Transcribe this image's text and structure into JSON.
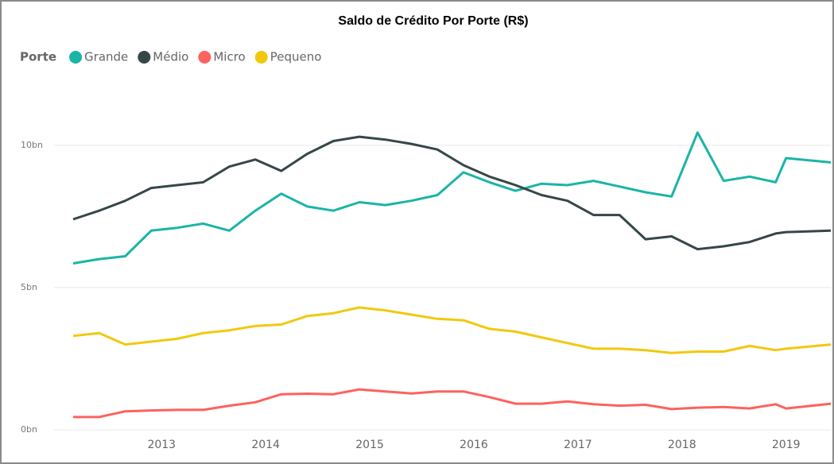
{
  "chart_data": {
    "type": "line",
    "title": "Saldo de Crédito Por Porte (R$)",
    "legend_title": "Porte",
    "x": [
      2012.15,
      2012.4,
      2012.65,
      2012.9,
      2013.15,
      2013.4,
      2013.65,
      2013.9,
      2014.15,
      2014.4,
      2014.65,
      2014.9,
      2015.15,
      2015.4,
      2015.65,
      2015.9,
      2016.15,
      2016.4,
      2016.65,
      2016.9,
      2017.15,
      2017.4,
      2017.65,
      2017.9,
      2018.15,
      2018.4,
      2018.65,
      2018.9,
      2019.0,
      2019.43
    ],
    "series": [
      {
        "name": "Grande",
        "color": "#1ab5a6",
        "values": [
          5.85,
          6.0,
          6.1,
          7.0,
          7.1,
          7.25,
          7.0,
          7.7,
          8.3,
          7.85,
          7.7,
          8.0,
          7.9,
          8.05,
          8.25,
          9.05,
          8.7,
          8.4,
          8.65,
          8.6,
          8.75,
          8.55,
          8.35,
          8.2,
          10.45,
          8.75,
          8.9,
          8.7,
          9.55,
          9.4
        ]
      },
      {
        "name": "Médio",
        "color": "#374649",
        "values": [
          7.4,
          7.7,
          8.05,
          8.5,
          8.6,
          8.7,
          9.25,
          9.5,
          9.1,
          9.7,
          10.15,
          10.3,
          10.2,
          10.05,
          9.85,
          9.3,
          8.9,
          8.6,
          8.25,
          8.05,
          7.55,
          7.55,
          6.7,
          6.8,
          6.35,
          6.45,
          6.6,
          6.9,
          6.95,
          7.0
        ]
      },
      {
        "name": "Micro",
        "color": "#fd625e",
        "values": [
          0.45,
          0.45,
          0.65,
          0.68,
          0.7,
          0.7,
          0.85,
          0.97,
          1.25,
          1.27,
          1.25,
          1.42,
          1.35,
          1.28,
          1.35,
          1.35,
          1.15,
          0.92,
          0.92,
          1.0,
          0.9,
          0.85,
          0.88,
          0.73,
          0.78,
          0.8,
          0.75,
          0.9,
          0.75,
          0.92
        ]
      },
      {
        "name": "Pequeno",
        "color": "#f2c80f",
        "values": [
          3.3,
          3.4,
          3.0,
          3.1,
          3.2,
          3.4,
          3.5,
          3.65,
          3.7,
          4.0,
          4.1,
          4.3,
          4.2,
          4.05,
          3.9,
          3.85,
          3.55,
          3.45,
          3.25,
          3.05,
          2.85,
          2.85,
          2.8,
          2.7,
          2.75,
          2.75,
          2.95,
          2.8,
          2.85,
          3.0
        ]
      }
    ],
    "xlim": [
      2012.15,
      2019.43
    ],
    "xticks": [
      2013,
      2014,
      2015,
      2016,
      2017,
      2018,
      2019
    ],
    "ylim": [
      0,
      12.3
    ],
    "yticks": [
      {
        "value": 0,
        "label": "0bn"
      },
      {
        "value": 5,
        "label": "5bn"
      },
      {
        "value": 10,
        "label": "10bn"
      }
    ],
    "grid": true
  }
}
